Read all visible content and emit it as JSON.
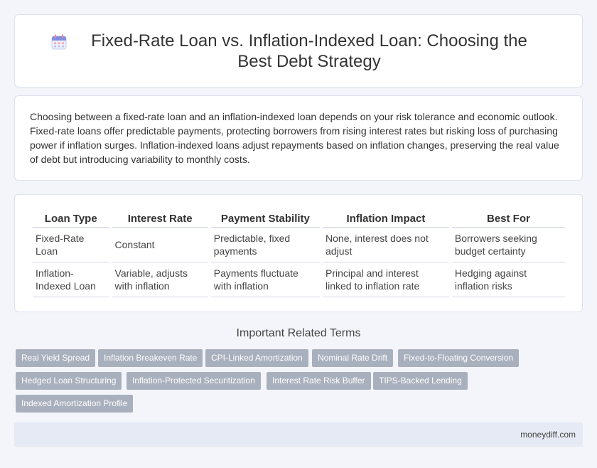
{
  "header": {
    "title": "Fixed-Rate Loan vs. Inflation-Indexed Loan: Choosing the Best Debt Strategy",
    "icon": "calendar-icon"
  },
  "intro": {
    "text": "Choosing between a fixed-rate loan and an inflation-indexed loan depends on your risk tolerance and economic outlook. Fixed-rate loans offer predictable payments, protecting borrowers from rising interest rates but risking loss of purchasing power if inflation surges. Inflation-indexed loans adjust repayments based on inflation changes, preserving the real value of debt but introducing variability to monthly costs."
  },
  "table": {
    "headers": [
      "Loan Type",
      "Interest Rate",
      "Payment Stability",
      "Inflation Impact",
      "Best For"
    ],
    "rows": [
      [
        "Fixed-Rate Loan",
        "Constant",
        "Predictable, fixed payments",
        "None, interest does not adjust",
        "Borrowers seeking budget certainty"
      ],
      [
        "Inflation-Indexed Loan",
        "Variable, adjusts with inflation",
        "Payments fluctuate with inflation",
        "Principal and interest linked to inflation rate",
        "Hedging against inflation risks"
      ]
    ]
  },
  "related": {
    "heading": "Important Related Terms",
    "tags": [
      "Real Yield Spread",
      "Inflation Breakeven Rate",
      "CPI-Linked Amortization",
      "Nominal Rate Drift",
      "Fixed-to-Floating Conversion",
      "Hedged Loan Structuring",
      "Inflation-Protected Securitization",
      "Interest Rate Risk Buffer",
      "TIPS-Backed Lending",
      "Indexed Amortization Profile"
    ]
  },
  "footer": {
    "site": "moneydiff.com"
  },
  "colors": {
    "background": "#f3f5fa",
    "tag_background": "#a9b0bd",
    "footer_background": "#e6eaf4"
  }
}
